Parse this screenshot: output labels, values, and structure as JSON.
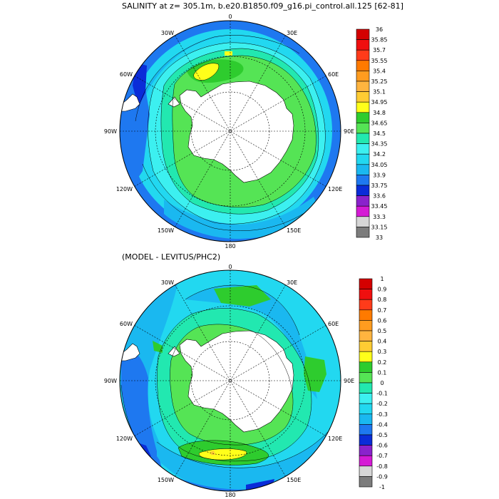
{
  "panels": [
    {
      "id": "salinity",
      "title": "SALINITY at z= 305.1m, b.e20.B1850.f09_g16.pi_control.all.125 [62-81]",
      "lon_labels": {
        "0": "0",
        "30E": "30E",
        "60E": "60E",
        "90E": "90E",
        "120E": "120E",
        "150E": "150E",
        "180": "180",
        "150W": "150W",
        "120W": "120W",
        "90W": "90W",
        "60W": "60W",
        "30W": "30W"
      },
      "colorbar": {
        "labels": [
          "36",
          "35.85",
          "35.7",
          "35.55",
          "35.4",
          "35.25",
          "35.1",
          "34.95",
          "34.8",
          "34.65",
          "34.5",
          "34.35",
          "34.2",
          "34.05",
          "33.9",
          "33.75",
          "33.6",
          "33.45",
          "33.3",
          "33.15",
          "33"
        ],
        "colors": [
          "#d40000",
          "#f00f0f",
          "#ff3b1a",
          "#ff7a00",
          "#ff9c1f",
          "#ffb43f",
          "#ffcc33",
          "#ffff1a",
          "#2ecc2e",
          "#55e455",
          "#22e8b0",
          "#3cf0f0",
          "#22d8f0",
          "#1ab8f0",
          "#1e78f0",
          "#0a2cd8",
          "#8a22cc",
          "#d51ad5",
          "#d6d6d6",
          "#7c7c7c"
        ]
      }
    },
    {
      "id": "difference",
      "title": "(MODEL - LEVITUS/PHC2)",
      "lon_labels": {
        "0": "0",
        "30E": "30E",
        "60E": "60E",
        "90E": "90E",
        "120E": "120E",
        "150E": "150E",
        "180": "180",
        "150W": "150W",
        "120W": "120W",
        "90W": "90W",
        "60W": "60W",
        "30W": "30W"
      },
      "colorbar": {
        "labels": [
          "1",
          "0.9",
          "0.8",
          "0.7",
          "0.6",
          "0.5",
          "0.4",
          "0.3",
          "0.2",
          "0.1",
          "0",
          "-0.1",
          "-0.2",
          "-0.3",
          "-0.4",
          "-0.5",
          "-0.6",
          "-0.7",
          "-0.8",
          "-0.9",
          "-1"
        ],
        "colors": [
          "#d40000",
          "#f00f0f",
          "#ff3b1a",
          "#ff7a00",
          "#ff9c1f",
          "#ffb43f",
          "#ffcc33",
          "#ffff1a",
          "#2ecc2e",
          "#55e455",
          "#22e8b0",
          "#3cf0f0",
          "#22d8f0",
          "#1ab8f0",
          "#1e78f0",
          "#0a2cd8",
          "#8a22cc",
          "#d51ad5",
          "#d6d6d6",
          "#7c7c7c"
        ]
      }
    }
  ],
  "colors": {
    "ocean_base": "#22d8f0",
    "land": "#ffffff",
    "outline": "#000000"
  }
}
